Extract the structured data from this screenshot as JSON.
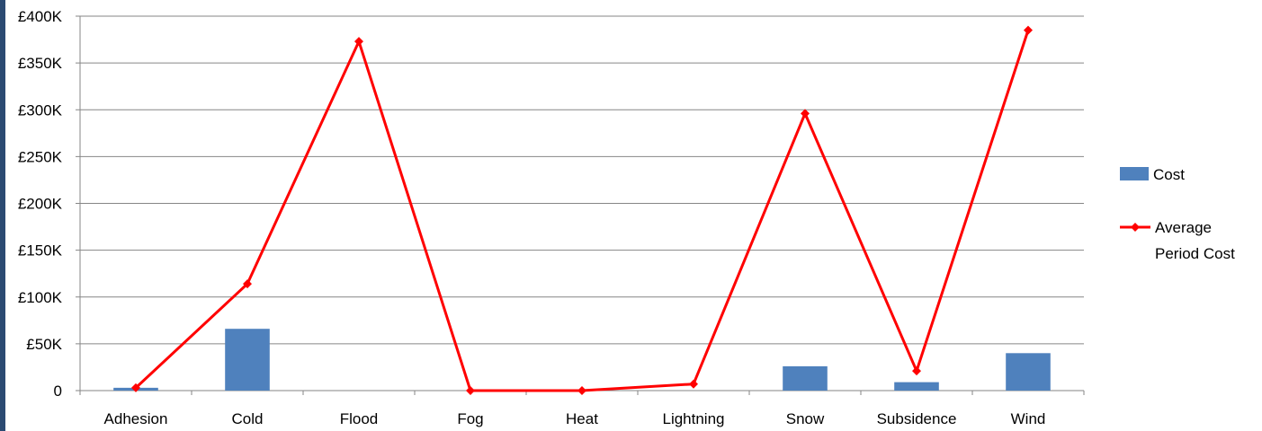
{
  "chart_data": {
    "type": "bar",
    "categories": [
      "Adhesion",
      "Cold",
      "Flood",
      "Fog",
      "Heat",
      "Lightning",
      "Snow",
      "Subsidence",
      "Wind"
    ],
    "series": [
      {
        "name": "Cost",
        "type": "bar",
        "color": "#4f81bd",
        "values": [
          3000,
          66000,
          0,
          0,
          0,
          0,
          26000,
          9000,
          40000
        ]
      },
      {
        "name": "Average Period Cost",
        "name_lines": [
          "Average",
          "Period Cost"
        ],
        "type": "line",
        "color": "#ff0000",
        "marker": "diamond",
        "values": [
          3000,
          114000,
          373000,
          0,
          0,
          7000,
          296000,
          21000,
          385000
        ]
      }
    ],
    "y_ticks": [
      0,
      50000,
      100000,
      150000,
      200000,
      250000,
      300000,
      350000,
      400000
    ],
    "y_tick_labels": [
      "0",
      "£50K",
      "£100K",
      "£150K",
      "£200K",
      "£250K",
      "£300K",
      "£350K",
      "£400K"
    ],
    "ylim": [
      0,
      400000
    ],
    "grid": true,
    "legend_position": "right",
    "title": "",
    "xlabel": "",
    "ylabel": ""
  }
}
